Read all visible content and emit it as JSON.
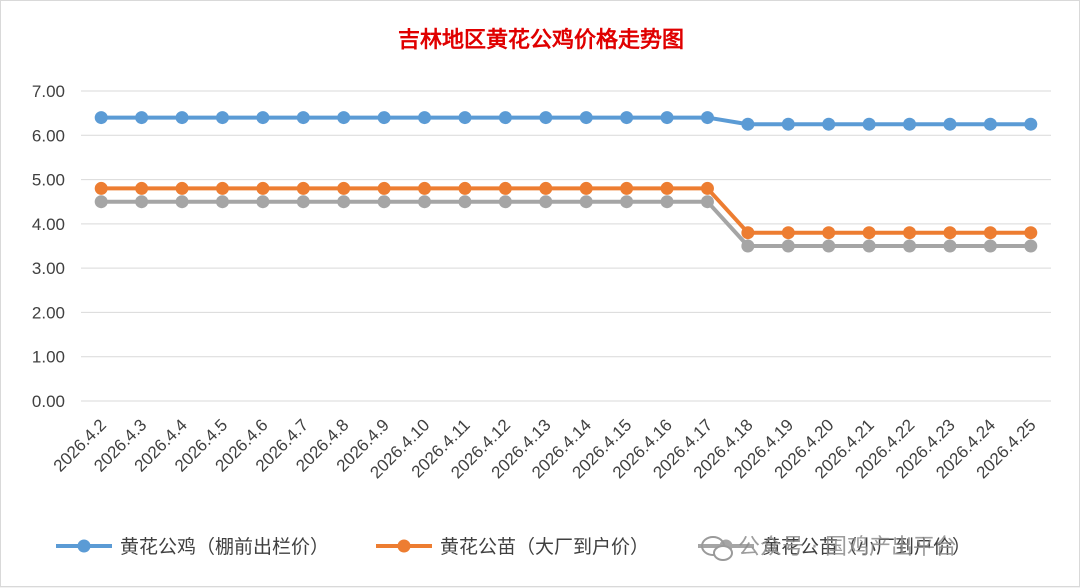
{
  "chart_data": {
    "type": "line",
    "title": "吉林地区黄花公鸡价格走势图",
    "xlabel": "",
    "ylabel": "",
    "x": [
      "2026.4.2",
      "2026.4.3",
      "2026.4.4",
      "2026.4.5",
      "2026.4.6",
      "2026.4.7",
      "2026.4.8",
      "2026.4.9",
      "2026.4.10",
      "2026.4.11",
      "2026.4.12",
      "2026.4.13",
      "2026.4.14",
      "2026.4.15",
      "2026.4.16",
      "2026.4.17",
      "2026.4.18",
      "2026.4.19",
      "2026.4.20",
      "2026.4.21",
      "2026.4.22",
      "2026.4.23",
      "2026.4.24",
      "2026.4.25"
    ],
    "yticks": [
      "0.00",
      "1.00",
      "2.00",
      "3.00",
      "4.00",
      "5.00",
      "6.00",
      "7.00"
    ],
    "ylim": [
      0,
      7
    ],
    "grid": true,
    "legend_position": "bottom",
    "series": [
      {
        "name": "黄花公鸡（棚前出栏价）",
        "color": "#5b9bd5",
        "values": [
          6.4,
          6.4,
          6.4,
          6.4,
          6.4,
          6.4,
          6.4,
          6.4,
          6.4,
          6.4,
          6.4,
          6.4,
          6.4,
          6.4,
          6.4,
          6.4,
          6.25,
          6.25,
          6.25,
          6.25,
          6.25,
          6.25,
          6.25,
          6.25
        ]
      },
      {
        "name": "黄花公苗（大厂到户价）",
        "color": "#ed7d31",
        "values": [
          4.8,
          4.8,
          4.8,
          4.8,
          4.8,
          4.8,
          4.8,
          4.8,
          4.8,
          4.8,
          4.8,
          4.8,
          4.8,
          4.8,
          4.8,
          4.8,
          3.8,
          3.8,
          3.8,
          3.8,
          3.8,
          3.8,
          3.8,
          3.8
        ]
      },
      {
        "name": "黄花公苗（小厂到户价）",
        "color": "#a5a5a5",
        "values": [
          4.5,
          4.5,
          4.5,
          4.5,
          4.5,
          4.5,
          4.5,
          4.5,
          4.5,
          4.5,
          4.5,
          4.5,
          4.5,
          4.5,
          4.5,
          4.5,
          3.5,
          3.5,
          3.5,
          3.5,
          3.5,
          3.5,
          3.5,
          3.5
        ]
      }
    ]
  },
  "watermark": {
    "text": "公众号 · 国鸡产出平台",
    "icon": "wechat-icon"
  }
}
